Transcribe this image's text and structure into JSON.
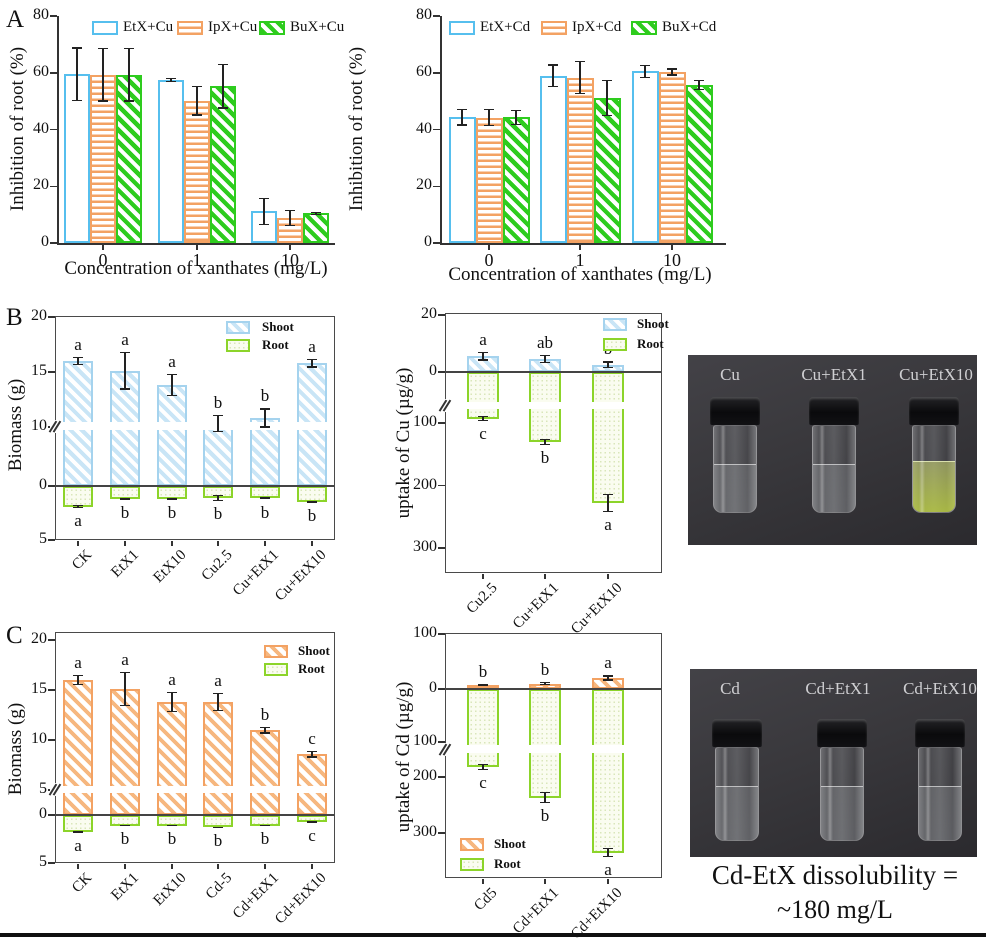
{
  "colors": {
    "etx_blue": "#56bfee",
    "ipx_orange": "#f3a263",
    "bux_green": "#2ecc1e",
    "shoot_blue_fill": "#c9e5f6",
    "shoot_orange_fill": "#f6b77f",
    "root_green": "#8cd42a",
    "photo_background": "#39383c",
    "caption_text": "#111111"
  },
  "panel_a": {
    "label": "A"
  },
  "panel_b": {
    "label": "B",
    "photo": {
      "labels": [
        "Cu",
        "Cu+EtX1",
        "Cu+EtX10"
      ],
      "liquids": [
        "clear",
        "clear",
        "yellow-green"
      ]
    }
  },
  "panel_c": {
    "label": "C",
    "photo": {
      "labels": [
        "Cd",
        "Cd+EtX1",
        "Cd+EtX10"
      ],
      "liquids": [
        "clear",
        "clear",
        "clear"
      ]
    },
    "caption_line1": "Cd-EtX dissolubility =",
    "caption_line2": "~180 mg/L"
  },
  "chart_data": [
    {
      "id": "A-left",
      "type": "bar",
      "ylabel": "Inhibition of root (%)",
      "xlabel": "Concentration of xanthates (mg/L)",
      "ylim": [
        0,
        80
      ],
      "yticks": [
        0,
        20,
        40,
        60,
        80
      ],
      "categories": [
        "0",
        "1",
        "10"
      ],
      "legend_position": "top",
      "grid": false,
      "series": [
        {
          "name": "EtX+Cu",
          "style": "blue-open",
          "values": [
            59.5,
            57.5,
            11.2
          ],
          "errors": [
            9.5,
            0.8,
            4.8
          ]
        },
        {
          "name": "IpX+Cu",
          "style": "orange-lines",
          "values": [
            59.3,
            50.2,
            8.8
          ],
          "errors": [
            9.5,
            5.3,
            2.8
          ]
        },
        {
          "name": "BuX+Cu",
          "style": "green-hatch",
          "values": [
            59.3,
            55.2,
            10.4
          ],
          "errors": [
            9.5,
            7.9,
            0.6
          ]
        }
      ]
    },
    {
      "id": "A-right",
      "type": "bar",
      "ylabel": "Inhibition of root (%)",
      "xlabel": "Concentration of xanthates (mg/L)",
      "ylim": [
        0,
        80
      ],
      "yticks": [
        0,
        20,
        40,
        60,
        80
      ],
      "categories": [
        "0",
        "1",
        "10"
      ],
      "legend_position": "top",
      "grid": false,
      "series": [
        {
          "name": "EtX+Cd",
          "style": "blue-open",
          "values": [
            44.3,
            59.0,
            60.5
          ],
          "errors": [
            2.9,
            4.0,
            2.4
          ]
        },
        {
          "name": "IpX+Cd",
          "style": "orange-lines",
          "values": [
            44.2,
            58.3,
            60.3
          ],
          "errors": [
            3.0,
            5.8,
            1.3
          ]
        },
        {
          "name": "BuX+Cd",
          "style": "green-hatch",
          "values": [
            44.3,
            51.0,
            55.6
          ],
          "errors": [
            2.7,
            6.4,
            1.8
          ]
        }
      ]
    },
    {
      "id": "B-biomass",
      "type": "bar",
      "ylabel": "Biomass (g)",
      "xlabel": "",
      "axis_break": true,
      "yticks": {
        "upper": [
          20,
          15,
          10
        ],
        "zero": 0,
        "lower": [
          5
        ]
      },
      "categories": [
        "CK",
        "EtX1",
        "EtX10",
        "Cu2.5",
        "Cu+EtX1",
        "Cu+EtX10"
      ],
      "legend_position": "top-right",
      "series": [
        {
          "name": "Shoot",
          "style": "blue-hatch",
          "direction": "up",
          "values": [
            16.0,
            15.1,
            13.8,
            10.1,
            10.8,
            15.8
          ],
          "errors": [
            0.4,
            1.7,
            1.0,
            1.0,
            0.9,
            0.4
          ],
          "letters": [
            "a",
            "a",
            "a",
            "b",
            "b",
            "a"
          ]
        },
        {
          "name": "Root",
          "style": "root-pale",
          "direction": "down",
          "values": [
            1.9,
            1.2,
            1.2,
            1.1,
            1.15,
            1.5
          ],
          "errors": [
            0.15,
            0.1,
            0.1,
            0.3,
            0.1,
            0.1
          ],
          "letters": [
            "a",
            "b",
            "b",
            "b",
            "b",
            "b"
          ]
        }
      ]
    },
    {
      "id": "B-uptake",
      "type": "bar",
      "ylabel": "uptake of Cu (µg/g)",
      "xlabel": "",
      "axis_break": true,
      "yticks": {
        "upper": [
          20
        ],
        "zero": 0,
        "lower": [
          100,
          200,
          300
        ]
      },
      "categories": [
        "Cu2.5",
        "Cu+EtX1",
        "Cu+EtX10"
      ],
      "legend_position": "top-right",
      "series": [
        {
          "name": "Shoot",
          "style": "blue-hatch",
          "direction": "up",
          "values": [
            5.5,
            4.5,
            2.5
          ],
          "errors": [
            1.5,
            1.5,
            1.2
          ],
          "letters": [
            "a",
            "ab",
            "b"
          ]
        },
        {
          "name": "Root",
          "style": "root-pale",
          "direction": "down",
          "values": [
            90,
            130,
            228
          ],
          "errors": [
            6,
            5,
            15
          ],
          "letters": [
            "c",
            "b",
            "a"
          ]
        }
      ]
    },
    {
      "id": "C-biomass",
      "type": "bar",
      "ylabel": "Biomass (g)",
      "xlabel": "",
      "axis_break": true,
      "yticks": {
        "upper": [
          20,
          15,
          10,
          5
        ],
        "zero": 0,
        "lower": [
          5
        ]
      },
      "categories": [
        "CK",
        "EtX1",
        "EtX10",
        "Cd-5",
        "Cd+EtX1",
        "Cd+EtX10"
      ],
      "legend_position": "top-right",
      "series": [
        {
          "name": "Shoot",
          "style": "orange-hatch",
          "direction": "up",
          "values": [
            16.0,
            15.1,
            13.8,
            13.8,
            11.0,
            8.6
          ],
          "errors": [
            0.5,
            1.7,
            1.0,
            0.9,
            0.35,
            0.35
          ],
          "letters": [
            "a",
            "a",
            "a",
            "a",
            "b",
            "c"
          ]
        },
        {
          "name": "Root",
          "style": "root-pale",
          "direction": "down",
          "values": [
            1.8,
            1.1,
            1.1,
            1.3,
            1.1,
            0.7
          ],
          "errors": [
            0.1,
            0.08,
            0.08,
            0.1,
            0.08,
            0.1
          ],
          "letters": [
            "a",
            "b",
            "b",
            "b",
            "b",
            "c"
          ]
        }
      ]
    },
    {
      "id": "C-uptake",
      "type": "bar",
      "ylabel": "uptake of Cd (µg/g)",
      "xlabel": "",
      "axis_break": true,
      "yticks": {
        "upper": [
          100
        ],
        "zero": 0,
        "lower": [
          100,
          200,
          300
        ]
      },
      "categories": [
        "Cd5",
        "Cd+EtX1",
        "Cd+EtX10"
      ],
      "legend_position": "bottom-left",
      "series": [
        {
          "name": "Shoot",
          "style": "orange-hatch",
          "direction": "up",
          "values": [
            7,
            10,
            20
          ],
          "errors": [
            2,
            3,
            5
          ],
          "letters": [
            "b",
            "b",
            "a"
          ]
        },
        {
          "name": "Root",
          "style": "root-pale",
          "direction": "down",
          "values": [
            182,
            237,
            335
          ],
          "errors": [
            6,
            10,
            8
          ],
          "letters": [
            "c",
            "b",
            "a"
          ]
        }
      ]
    }
  ]
}
